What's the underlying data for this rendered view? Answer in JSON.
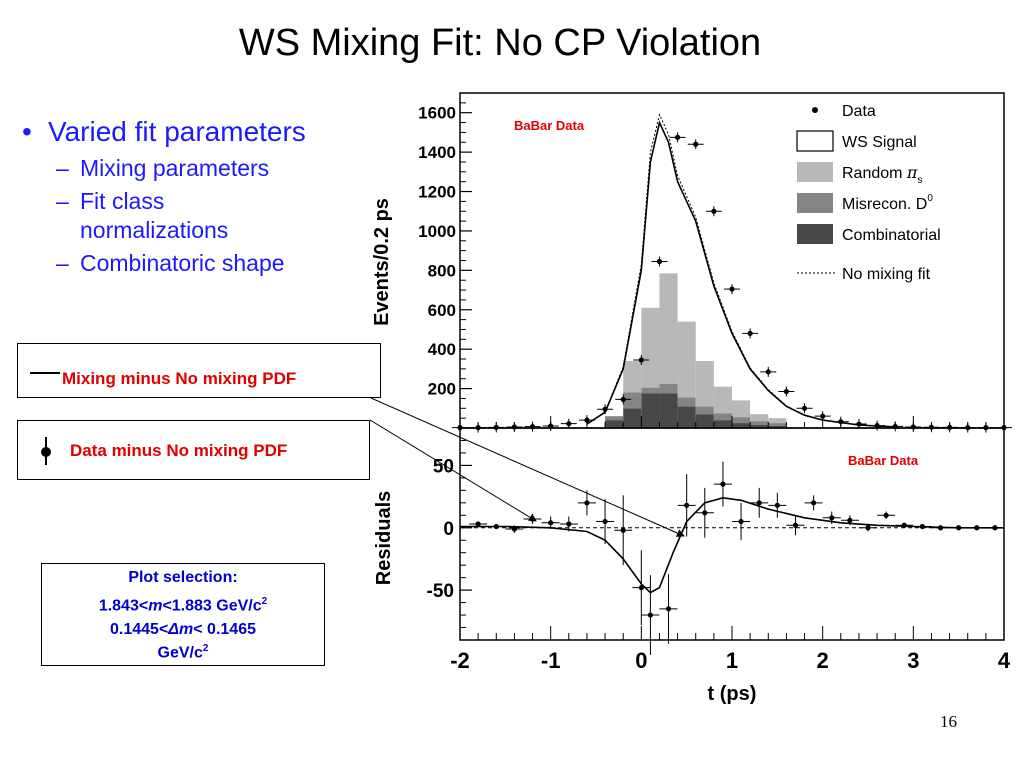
{
  "slide": {
    "title": "WS Mixing Fit: No CP Violation",
    "page_number": "16",
    "bullet": "Varied fit parameters",
    "sub_bullets": [
      "Mixing parameters",
      "Fit class normalizations",
      "Combinatoric shape"
    ],
    "dash": "–",
    "bullet_char": "•",
    "box_mixing_label": "Mixing minus No mixing PDF",
    "box_data_label": "Data minus No mixing PDF",
    "selection": {
      "title": "Plot selection:",
      "line1_pre": "1.843<",
      "line1_var": "m",
      "line1_post": "<1.883 GeV/c",
      "line1_sup": "2",
      "line2_pre": "0.1445<",
      "line2_sym": "Δ",
      "line2_var": "m",
      "line2_post": "< 0.1465",
      "line3": "GeV/c",
      "line3_sup": "2"
    },
    "colors": {
      "title_text": "#000000",
      "bullet_text": "#1a1aff",
      "label_red": "#e00000",
      "selection_text": "#0000cc"
    }
  },
  "chart_data": [
    {
      "type": "bar",
      "panel": "top",
      "annotation": "BaBar Data",
      "ylabel": "Events/0.2 ps",
      "xlim": [
        -2,
        4
      ],
      "ylim": [
        0,
        1700
      ],
      "yticks": [
        200,
        400,
        600,
        800,
        1000,
        1200,
        1400,
        1600
      ],
      "legend_position": "top-right",
      "legend": [
        "Data",
        "WS Signal",
        "Random π_s",
        "Misrecon. D^0",
        "Combinatorial",
        "No mixing fit"
      ],
      "legend_text": {
        "data": "Data",
        "ws_signal": "WS Signal",
        "random_pre": "Random ",
        "random_pi": "π",
        "random_sub": "s",
        "misrecon_pre": "Misrecon. D",
        "misrecon_sup": "0",
        "combinatorial": "Combinatorial",
        "no_mixing": "No mixing fit"
      },
      "bin_edges": [
        -0.4,
        -0.2,
        0.0,
        0.2,
        0.4,
        0.6,
        0.8,
        1.0,
        1.2,
        1.4,
        1.6
      ],
      "stacked_series": [
        {
          "name": "Combinatorial",
          "color": "#484848",
          "values": [
            40,
            100,
            175,
            175,
            110,
            70,
            40,
            25,
            15,
            10
          ]
        },
        {
          "name": "Misrecon. D0",
          "color": "#848484",
          "values": [
            20,
            80,
            30,
            50,
            45,
            40,
            35,
            30,
            20,
            15
          ]
        },
        {
          "name": "Random πs",
          "color": "#b8b8b8",
          "values": [
            0,
            160,
            405,
            560,
            385,
            230,
            135,
            85,
            35,
            25
          ]
        }
      ],
      "data_points": {
        "x": [
          -2.0,
          -1.8,
          -1.6,
          -1.4,
          -1.2,
          -1.0,
          -0.8,
          -0.6,
          -0.4,
          -0.2,
          0.0,
          0.2,
          0.4,
          0.6,
          0.8,
          1.0,
          1.2,
          1.4,
          1.6,
          1.8,
          2.0,
          2.2,
          2.4,
          2.6,
          2.8,
          3.0,
          3.2,
          3.4,
          3.6,
          3.8,
          4.0
        ],
        "y": [
          2,
          2,
          3,
          5,
          7,
          10,
          22,
          40,
          95,
          145,
          345,
          845,
          1475,
          1440,
          1100,
          705,
          480,
          285,
          185,
          100,
          60,
          32,
          20,
          12,
          8,
          5,
          4,
          3,
          2,
          2,
          2
        ]
      },
      "ws_signal_curve": {
        "x": [
          -0.6,
          -0.4,
          -0.2,
          0.0,
          0.1,
          0.2,
          0.3,
          0.4,
          0.6,
          0.8,
          1.0,
          1.2,
          1.4,
          1.6,
          1.8,
          2.0,
          2.4,
          2.8
        ],
        "y": [
          20,
          80,
          300,
          800,
          1350,
          1550,
          1450,
          1250,
          1050,
          720,
          480,
          300,
          190,
          110,
          65,
          40,
          15,
          5
        ]
      },
      "no_mixing_curve": {
        "x": [
          -0.6,
          -0.4,
          -0.2,
          0.0,
          0.1,
          0.2,
          0.3,
          0.4,
          0.6,
          0.8,
          1.0,
          1.2,
          1.4,
          1.6,
          1.8,
          2.0,
          2.4,
          2.8
        ],
        "y": [
          20,
          82,
          310,
          830,
          1400,
          1590,
          1490,
          1280,
          1070,
          735,
          490,
          305,
          195,
          112,
          66,
          40,
          15,
          5
        ]
      }
    },
    {
      "type": "scatter",
      "panel": "bottom",
      "annotation": "BaBar Data",
      "xlabel": "t (ps)",
      "ylabel": "Residuals",
      "xlim": [
        -2,
        4
      ],
      "ylim": [
        -90,
        80
      ],
      "xticks": [
        -2,
        -1,
        0,
        1,
        2,
        3,
        4
      ],
      "yticks": [
        -50,
        0,
        50
      ],
      "data_points": {
        "x": [
          -1.8,
          -1.6,
          -1.4,
          -1.2,
          -1.0,
          -0.8,
          -0.6,
          -0.4,
          -0.2,
          0.0,
          0.1,
          0.3,
          0.5,
          0.7,
          0.9,
          1.1,
          1.3,
          1.5,
          1.7,
          1.9,
          2.1,
          2.3,
          2.5,
          2.7,
          2.9,
          3.1,
          3.3,
          3.5,
          3.7,
          3.9
        ],
        "y": [
          3,
          1,
          -1,
          7,
          4,
          3,
          20,
          5,
          -2,
          -48,
          -70,
          -65,
          18,
          12,
          35,
          5,
          20,
          18,
          2,
          20,
          8,
          6,
          0,
          10,
          2,
          1,
          0,
          0,
          0,
          0
        ],
        "err": [
          2,
          2,
          3,
          4,
          5,
          6,
          10,
          18,
          28,
          30,
          32,
          28,
          25,
          20,
          18,
          15,
          12,
          10,
          8,
          6,
          5,
          4,
          3,
          3,
          2,
          2,
          2,
          2,
          2,
          2
        ]
      },
      "mixing_minus_no_mixing_curve": {
        "x": [
          -2.0,
          -1.5,
          -1.0,
          -0.6,
          -0.4,
          -0.2,
          0.0,
          0.1,
          0.2,
          0.35,
          0.5,
          0.7,
          0.9,
          1.1,
          1.4,
          1.8,
          2.2,
          2.6,
          3.0,
          3.5,
          4.0
        ],
        "y": [
          1,
          1,
          0,
          -3,
          -10,
          -25,
          -45,
          -52,
          -48,
          -20,
          5,
          20,
          24,
          22,
          15,
          8,
          4,
          2,
          1,
          0,
          0
        ]
      }
    }
  ]
}
